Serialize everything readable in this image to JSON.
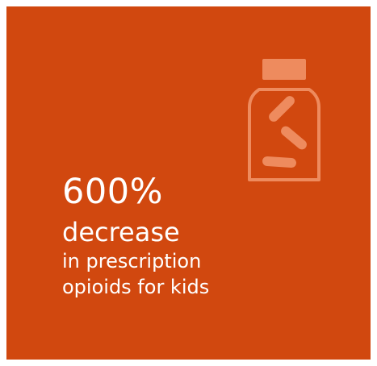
{
  "colors": {
    "card_background": "#D1480F",
    "icon_fill": "#EE8B5E",
    "text": "#FFFFFF",
    "page_background": "#FFFFFF"
  },
  "icon": {
    "name": "pill-bottle-icon"
  },
  "stat": {
    "value": "600%",
    "headline": "decrease",
    "description_line1": "in prescription",
    "description_line2": "opioids for kids"
  }
}
